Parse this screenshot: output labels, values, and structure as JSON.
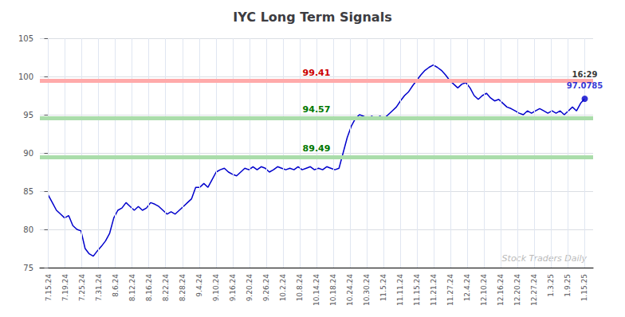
{
  "chart_data": {
    "type": "line",
    "title": "IYC Long Term Signals",
    "color": "#0000cc",
    "x": [
      0,
      0.2443,
      0.4885,
      0.7328,
      0.9771,
      1.2214,
      1.4656,
      1.7099,
      1.9542,
      2.1985,
      2.4427,
      2.687,
      2.9313,
      3.1756,
      3.4198,
      3.6641,
      3.9084,
      4.1527,
      4.3969,
      4.6412,
      4.8855,
      5.1298,
      5.374,
      5.6183,
      5.8626,
      6.1069,
      6.3511,
      6.5954,
      6.8397,
      7.084,
      7.3282,
      7.5725,
      7.8168,
      8.0611,
      8.3053,
      8.5496,
      8.7939,
      9.0382,
      9.2824,
      9.5267,
      9.771,
      10.0153,
      10.2595,
      10.5038,
      10.7481,
      10.9924,
      11.2366,
      11.4809,
      11.7252,
      11.9695,
      12.2137,
      12.458,
      12.7023,
      12.9466,
      13.1908,
      13.4351,
      13.6794,
      13.9237,
      14.1679,
      14.4122,
      14.6565,
      14.9008,
      15.145,
      15.3893,
      15.6336,
      15.8779,
      16.1221,
      16.3664,
      16.6107,
      16.855,
      17.0992,
      17.3435,
      17.5878,
      17.8321,
      18.0763,
      18.3206,
      18.5649,
      18.8092,
      19.0534,
      19.2977,
      19.542,
      19.7863,
      20.0305,
      20.2748,
      20.5191,
      20.7634,
      21.0076,
      21.2519,
      21.4962,
      21.7405,
      21.9847,
      22.229,
      22.4733,
      22.7176,
      22.9618,
      23.2061,
      23.4504,
      23.6947,
      23.9389,
      24.1832,
      24.4275,
      24.6718,
      24.916,
      25.1603,
      25.4046,
      25.6489,
      25.8931,
      26.1374,
      26.3817,
      26.626,
      26.8702,
      27.1145,
      27.3588,
      27.6031,
      27.8473,
      28.0916,
      28.3359,
      28.5802,
      28.8244,
      29.0687,
      29.313,
      29.5573,
      29.8015,
      30.0458,
      30.2901,
      30.5344,
      30.7786,
      31.0229,
      31.2672,
      31.5115,
      31.7557,
      32
    ],
    "values": [
      84.5,
      83.5,
      82.5,
      82.0,
      81.5,
      81.8,
      80.5,
      80.0,
      79.8,
      77.5,
      76.8,
      76.5,
      77.2,
      77.8,
      78.5,
      79.5,
      81.5,
      82.5,
      82.8,
      83.5,
      83.0,
      82.5,
      83.0,
      82.5,
      82.8,
      83.5,
      83.3,
      83.0,
      82.5,
      82.0,
      82.3,
      82.0,
      82.5,
      83.0,
      83.5,
      84.0,
      85.5,
      85.5,
      86.0,
      85.5,
      86.5,
      87.5,
      87.8,
      88.0,
      87.5,
      87.2,
      87.0,
      87.5,
      88.0,
      87.8,
      88.2,
      87.8,
      88.2,
      88.0,
      87.5,
      87.8,
      88.2,
      88.0,
      87.8,
      88.0,
      87.8,
      88.2,
      87.8,
      88.0,
      88.2,
      87.8,
      88.0,
      87.8,
      88.2,
      88.0,
      87.8,
      88.0,
      90.0,
      92.0,
      93.5,
      94.5,
      95.0,
      94.8,
      94.5,
      94.8,
      94.5,
      94.8,
      94.5,
      95.0,
      95.5,
      96.0,
      96.8,
      97.5,
      98.0,
      98.8,
      99.5,
      100.2,
      100.8,
      101.2,
      101.5,
      101.2,
      100.8,
      100.2,
      99.5,
      99.0,
      98.5,
      99.0,
      99.2,
      98.5,
      97.5,
      97.0,
      97.5,
      97.8,
      97.2,
      96.8,
      97.0,
      96.5,
      96.0,
      95.8,
      95.5,
      95.2,
      95.0,
      95.5,
      95.2,
      95.5,
      95.8,
      95.5,
      95.2,
      95.5,
      95.2,
      95.5,
      95.0,
      95.5,
      96.0,
      95.5,
      96.5,
      97.0785
    ],
    "xlim": [
      -0.5,
      32.5
    ],
    "xticks": [
      {
        "value": 0,
        "label": "7.15.24"
      },
      {
        "value": 1,
        "label": "7.19.24"
      },
      {
        "value": 2,
        "label": "7.25.24"
      },
      {
        "value": 3,
        "label": "7.31.24"
      },
      {
        "value": 4,
        "label": "8.6.24"
      },
      {
        "value": 5,
        "label": "8.12.24"
      },
      {
        "value": 6,
        "label": "8.16.24"
      },
      {
        "value": 7,
        "label": "8.22.24"
      },
      {
        "value": 8,
        "label": "8.28.24"
      },
      {
        "value": 9,
        "label": "9.4.24"
      },
      {
        "value": 10,
        "label": "9.10.24"
      },
      {
        "value": 11,
        "label": "9.16.24"
      },
      {
        "value": 12,
        "label": "9.20.24"
      },
      {
        "value": 13,
        "label": "9.26.24"
      },
      {
        "value": 14,
        "label": "10.2.24"
      },
      {
        "value": 15,
        "label": "10.8.24"
      },
      {
        "value": 16,
        "label": "10.14.24"
      },
      {
        "value": 17,
        "label": "10.18.24"
      },
      {
        "value": 18,
        "label": "10.24.24"
      },
      {
        "value": 19,
        "label": "10.30.24"
      },
      {
        "value": 20,
        "label": "11.5.24"
      },
      {
        "value": 21,
        "label": "11.11.24"
      },
      {
        "value": 22,
        "label": "11.15.24"
      },
      {
        "value": 23,
        "label": "11.21.24"
      },
      {
        "value": 24,
        "label": "11.27.24"
      },
      {
        "value": 25,
        "label": "12.4.24"
      },
      {
        "value": 26,
        "label": "12.10.24"
      },
      {
        "value": 27,
        "label": "12.16.24"
      },
      {
        "value": 28,
        "label": "12.20.24"
      },
      {
        "value": 29,
        "label": "12.27.24"
      },
      {
        "value": 30,
        "label": "1.3.25"
      },
      {
        "value": 31,
        "label": "1.9.25"
      },
      {
        "value": 32,
        "label": "1.15.25"
      }
    ],
    "ylim": [
      75,
      105
    ],
    "yticks": [
      75,
      80,
      85,
      90,
      95,
      100,
      105
    ],
    "grid": true,
    "reference_lines": [
      {
        "y": 99.41,
        "color": "#ffaaaa",
        "label": "99.41",
        "label_color": "#cc0000"
      },
      {
        "y": 94.57,
        "color": "#aaddaa",
        "label": "94.57",
        "label_color": "#007700"
      },
      {
        "y": 89.49,
        "color": "#aaddaa",
        "label": "89.49",
        "label_color": "#007700"
      }
    ],
    "annotations": [
      {
        "text": "16:29",
        "color": "#000000"
      },
      {
        "text": "97.0785",
        "color": "#0000cc"
      }
    ],
    "watermark": {
      "text": "Stock Traders Daily",
      "color": "#bbbbbb"
    }
  }
}
